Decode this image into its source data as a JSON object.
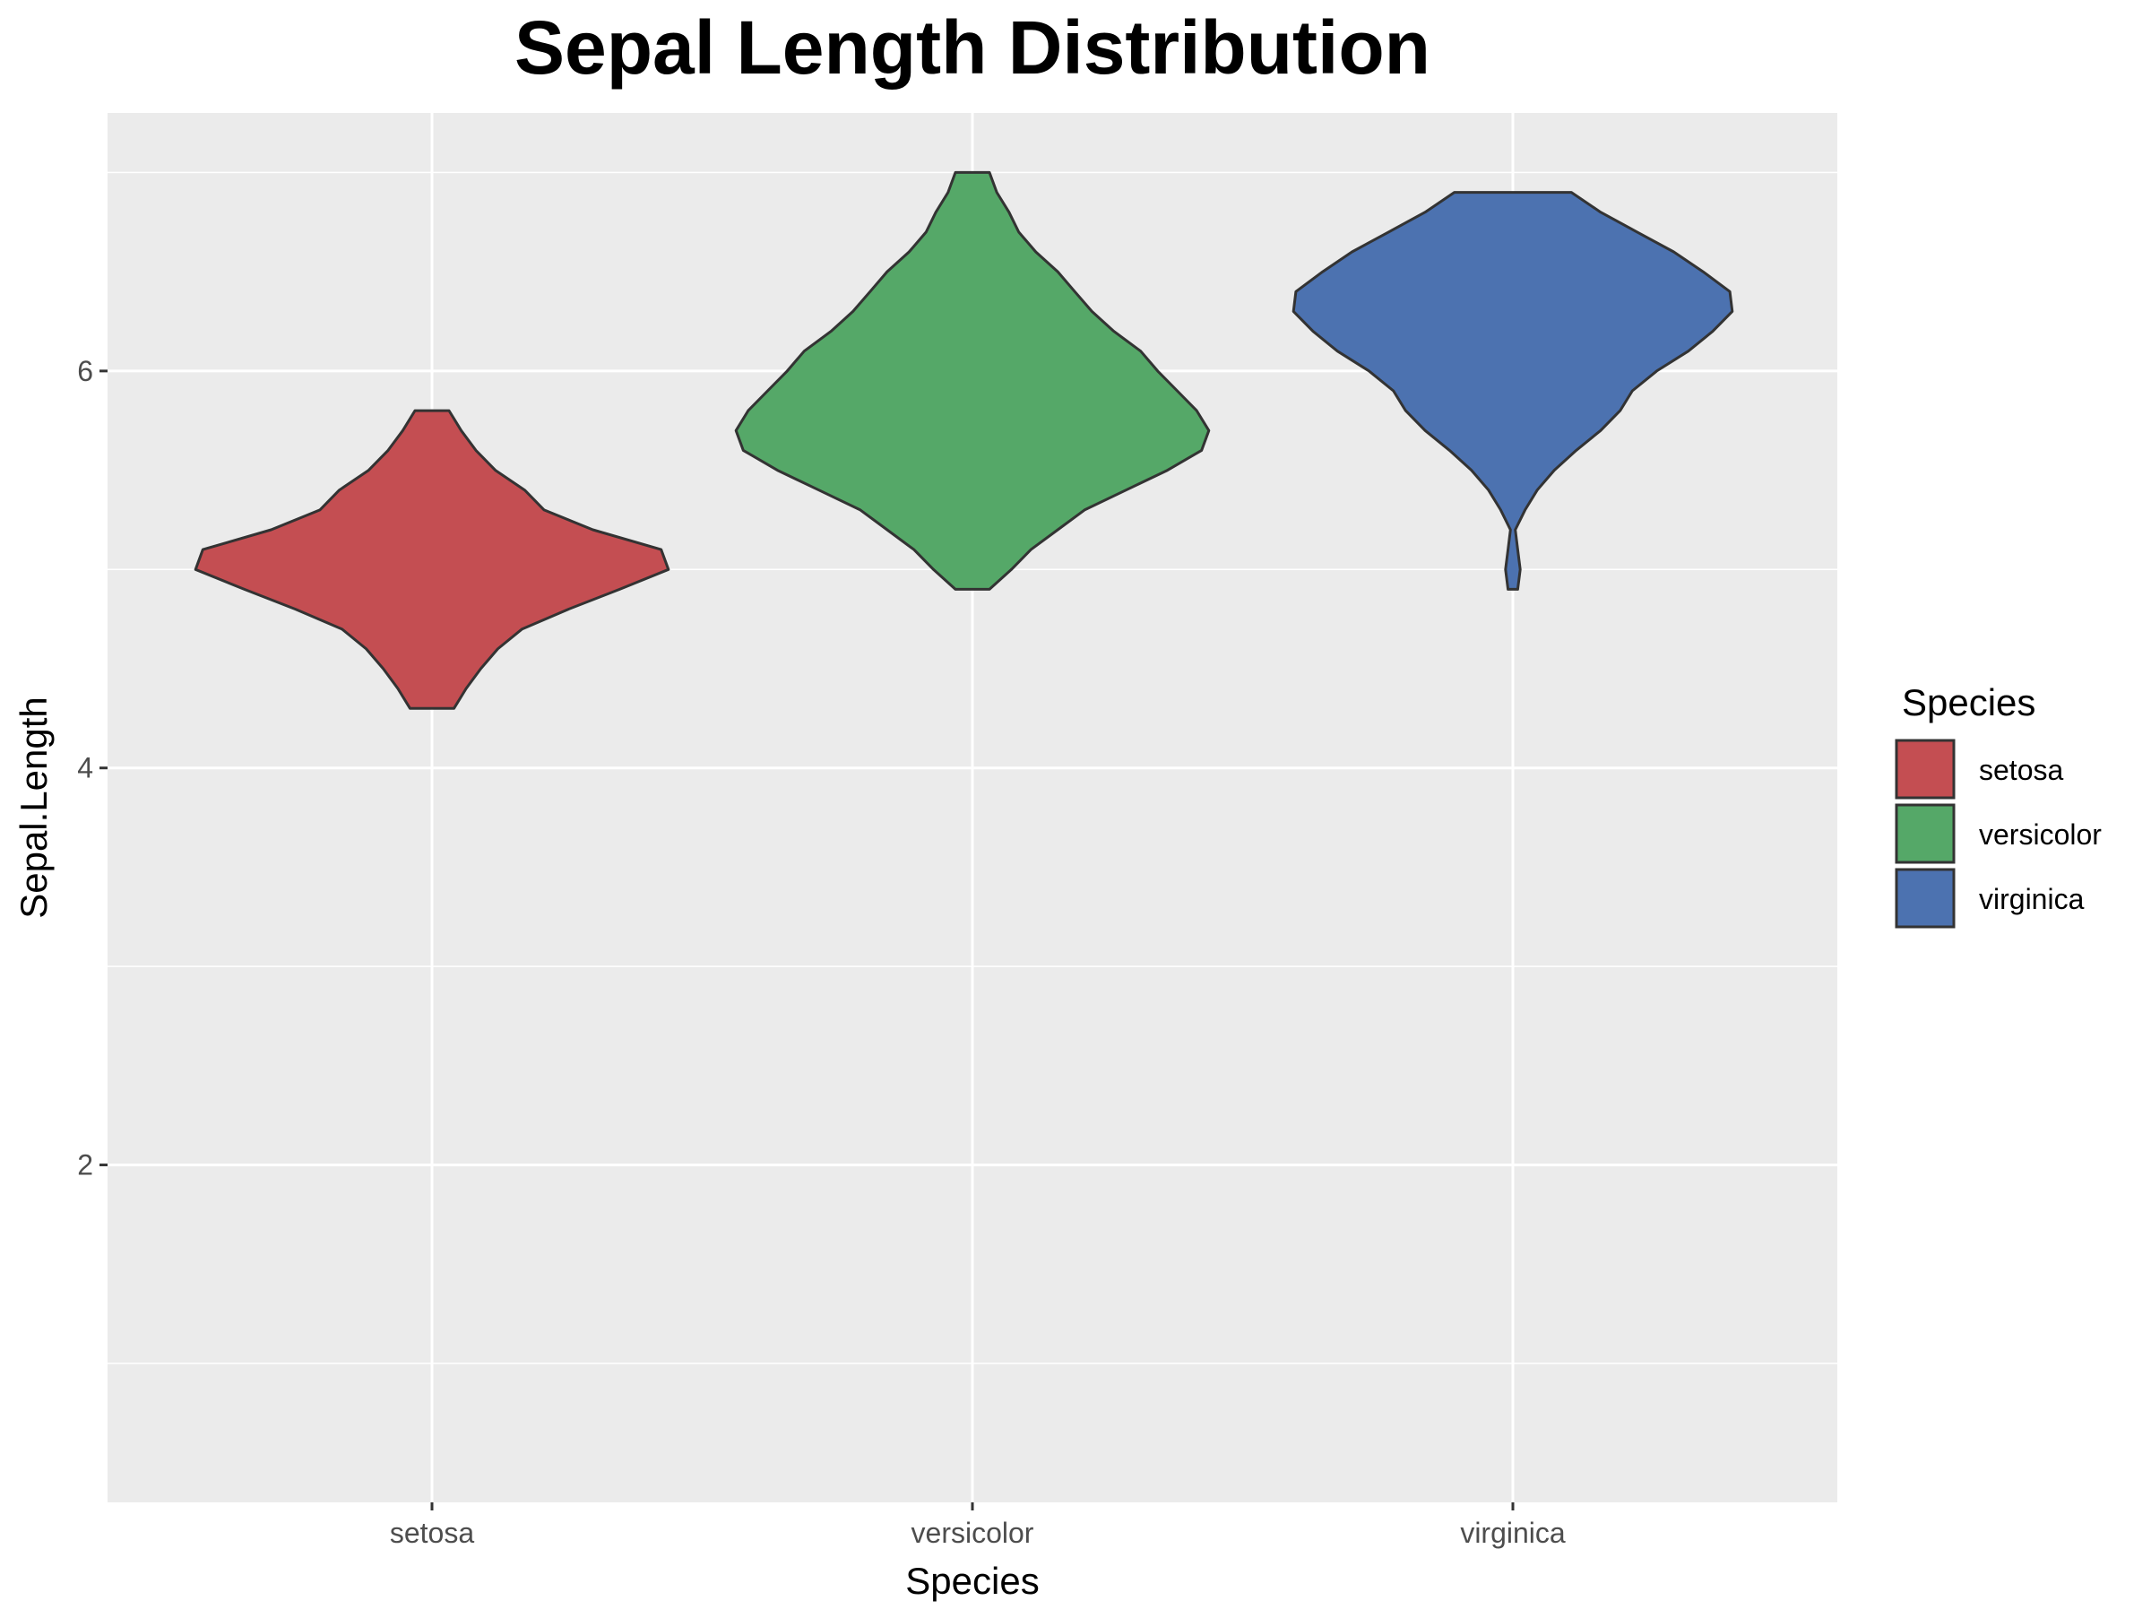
{
  "chart_data": {
    "type": "violin",
    "title": "Sepal Length Distribution",
    "xlabel": "Species",
    "ylabel": "Sepal.Length",
    "categories": [
      "setosa",
      "versicolor",
      "virginica"
    ],
    "ylim": [
      0.3,
      7.3
    ],
    "y_ticks": [
      2,
      4,
      6
    ],
    "grid": true,
    "legend": {
      "title": "Species",
      "position": "right",
      "entries": [
        "setosa",
        "versicolor",
        "virginica"
      ]
    },
    "colors": {
      "setosa": "#c44e52",
      "versicolor": "#55a868",
      "virginica": "#4c72b0",
      "outline": "#333333",
      "panel": "#ebebeb",
      "grid": "#ffffff"
    },
    "series": [
      {
        "name": "setosa",
        "min": 4.3,
        "max": 5.8,
        "density_profile": [
          [
            4.3,
            0.09
          ],
          [
            4.4,
            0.14
          ],
          [
            4.5,
            0.2
          ],
          [
            4.6,
            0.27
          ],
          [
            4.7,
            0.37
          ],
          [
            4.8,
            0.56
          ],
          [
            4.9,
            0.77
          ],
          [
            5.0,
            0.97
          ],
          [
            5.1,
            0.94
          ],
          [
            5.2,
            0.66
          ],
          [
            5.3,
            0.46
          ],
          [
            5.4,
            0.38
          ],
          [
            5.5,
            0.26
          ],
          [
            5.6,
            0.18
          ],
          [
            5.7,
            0.12
          ],
          [
            5.8,
            0.07
          ]
        ]
      },
      {
        "name": "versicolor",
        "min": 4.9,
        "max": 7.0,
        "density_profile": [
          [
            4.9,
            0.07
          ],
          [
            5.0,
            0.16
          ],
          [
            5.1,
            0.24
          ],
          [
            5.2,
            0.35
          ],
          [
            5.3,
            0.46
          ],
          [
            5.4,
            0.63
          ],
          [
            5.5,
            0.8
          ],
          [
            5.6,
            0.94
          ],
          [
            5.7,
            0.97
          ],
          [
            5.8,
            0.92
          ],
          [
            5.9,
            0.84
          ],
          [
            6.0,
            0.76
          ],
          [
            6.1,
            0.69
          ],
          [
            6.2,
            0.58
          ],
          [
            6.3,
            0.49
          ],
          [
            6.4,
            0.42
          ],
          [
            6.5,
            0.35
          ],
          [
            6.6,
            0.26
          ],
          [
            6.7,
            0.19
          ],
          [
            6.8,
            0.15
          ],
          [
            6.9,
            0.1
          ],
          [
            7.0,
            0.07
          ]
        ]
      },
      {
        "name": "virginica",
        "min": 4.9,
        "max": 6.9,
        "density_profile": [
          [
            4.9,
            0.02
          ],
          [
            5.0,
            0.03
          ],
          [
            5.1,
            0.02
          ],
          [
            5.2,
            0.01
          ],
          [
            5.3,
            0.05
          ],
          [
            5.4,
            0.1
          ],
          [
            5.5,
            0.17
          ],
          [
            5.6,
            0.26
          ],
          [
            5.7,
            0.36
          ],
          [
            5.8,
            0.44
          ],
          [
            5.9,
            0.49
          ],
          [
            6.0,
            0.59
          ],
          [
            6.1,
            0.72
          ],
          [
            6.2,
            0.82
          ],
          [
            6.3,
            0.9
          ],
          [
            6.4,
            0.89
          ],
          [
            6.5,
            0.78
          ],
          [
            6.6,
            0.66
          ],
          [
            6.7,
            0.51
          ],
          [
            6.8,
            0.36
          ],
          [
            6.9,
            0.24
          ]
        ]
      }
    ]
  }
}
